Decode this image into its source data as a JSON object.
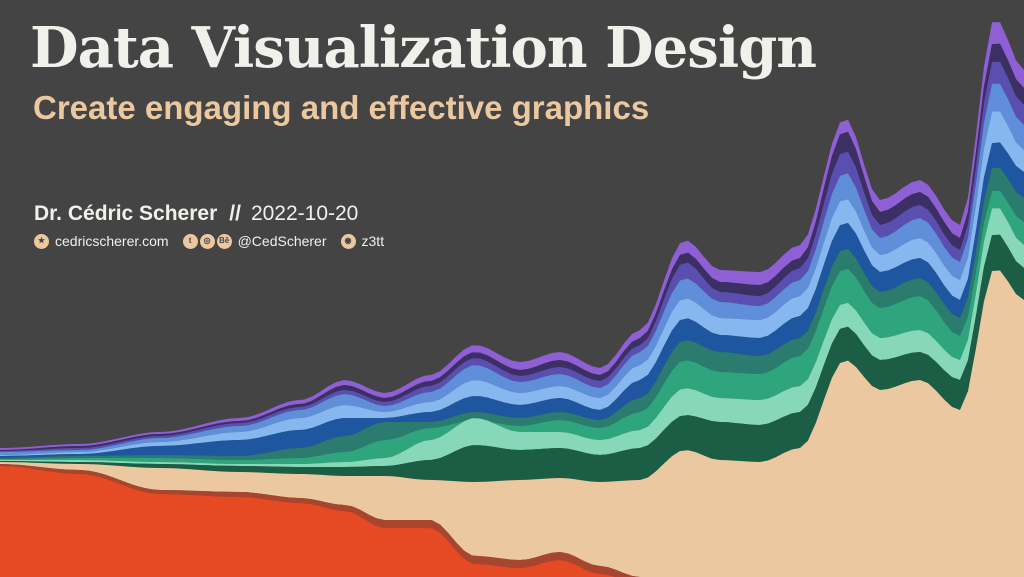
{
  "title": "Data Visualization Design",
  "subtitle": "Create engaging and effective graphics",
  "author": "Dr. Cédric Scherer",
  "separator": "//",
  "date": "2022-10-20",
  "links": {
    "website": "cedricscherer.com",
    "social_handle": "@CedScherer",
    "github": "z3tt"
  },
  "colors": {
    "background": "#444444",
    "title": "#f2f0ea",
    "subtitle": "#ecc8a0",
    "stream_layers": [
      "#8f5fd6",
      "#3b2f63",
      "#5a4fb0",
      "#5f8fd8",
      "#87b7ef",
      "#1f56a0",
      "#2b7b6e",
      "#2ea57c",
      "#86d8b8",
      "#1b5e45",
      "#ecc8a0",
      "#a8452f",
      "#e64a22"
    ]
  },
  "icons": [
    "star-icon",
    "twitter-icon",
    "instagram-icon",
    "behance-icon",
    "github-icon"
  ]
}
